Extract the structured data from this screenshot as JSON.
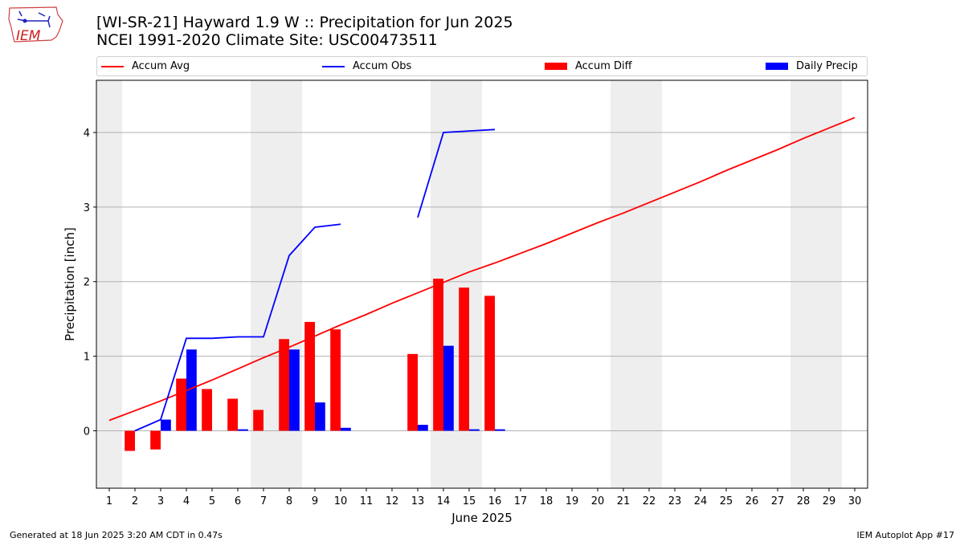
{
  "title_line1": "[WI-SR-21] Hayward 1.9 W :: Precipitation for Jun 2025",
  "title_line2": "NCEI 1991-2020 Climate Site: USC00473511",
  "logo_text": "IEM",
  "footer_left": "Generated at 18 Jun 2025 3:20 AM CDT in 0.47s",
  "footer_right": "IEM Autoplot App #17",
  "legend": [
    {
      "label": "Accum Avg",
      "kind": "line",
      "color": "#ff0000"
    },
    {
      "label": "Accum Obs",
      "kind": "line",
      "color": "#0000ff"
    },
    {
      "label": "Accum Diff",
      "kind": "bar",
      "color": "#ff0000"
    },
    {
      "label": "Daily Precip",
      "kind": "bar",
      "color": "#0000ff"
    }
  ],
  "chart_data": {
    "type": "bar",
    "xlabel": "June 2025",
    "ylabel": "Precipitation [inch]",
    "xlim": [
      0.5,
      30.5
    ],
    "ylim": [
      -0.77,
      4.7
    ],
    "xticks": [
      1,
      2,
      3,
      4,
      5,
      6,
      7,
      8,
      9,
      10,
      11,
      12,
      13,
      14,
      15,
      16,
      17,
      18,
      19,
      20,
      21,
      22,
      23,
      24,
      25,
      26,
      27,
      28,
      29,
      30
    ],
    "yticks": [
      0,
      1,
      2,
      3,
      4
    ],
    "weekend_bands": [
      [
        0.5,
        1.5
      ],
      [
        6.5,
        8.5
      ],
      [
        13.5,
        15.5
      ],
      [
        20.5,
        22.5
      ],
      [
        27.5,
        29.5
      ]
    ],
    "grid": "horizontal",
    "legend_position": "top",
    "series": [
      {
        "name": "Accum Avg",
        "kind": "line",
        "color": "#ff0000",
        "x": [
          1,
          2,
          3,
          4,
          5,
          6,
          7,
          8,
          9,
          10,
          11,
          12,
          13,
          14,
          15,
          16,
          17,
          18,
          19,
          20,
          21,
          22,
          23,
          24,
          25,
          26,
          27,
          28,
          29,
          30
        ],
        "values": [
          0.14,
          0.27,
          0.4,
          0.54,
          0.68,
          0.83,
          0.98,
          1.12,
          1.27,
          1.42,
          1.56,
          1.71,
          1.85,
          1.99,
          2.13,
          2.25,
          2.38,
          2.51,
          2.65,
          2.79,
          2.92,
          3.06,
          3.2,
          3.34,
          3.49,
          3.63,
          3.77,
          3.92,
          4.06,
          4.2
        ]
      },
      {
        "name": "Accum Obs",
        "kind": "line",
        "color": "#0000ff",
        "segments": [
          {
            "x": [
              2,
              3,
              4,
              5,
              6,
              7,
              8,
              9,
              10
            ],
            "values": [
              0.0,
              0.15,
              1.24,
              1.24,
              1.26,
              1.26,
              2.35,
              2.73,
              2.77
            ]
          },
          {
            "x": [
              13,
              14,
              15,
              16
            ],
            "values": [
              2.86,
              4.0,
              4.02,
              4.04
            ]
          }
        ]
      },
      {
        "name": "Accum Diff",
        "kind": "bar",
        "color": "#ff0000",
        "x": [
          2,
          3,
          4,
          5,
          6,
          7,
          8,
          9,
          10,
          13,
          14,
          15,
          16
        ],
        "values": [
          -0.27,
          -0.25,
          0.7,
          0.56,
          0.43,
          0.28,
          1.23,
          1.46,
          1.36,
          1.03,
          2.04,
          1.92,
          1.81
        ]
      },
      {
        "name": "Daily Precip",
        "kind": "bar",
        "color": "#0000ff",
        "x": [
          3,
          4,
          6,
          8,
          9,
          10,
          13,
          14,
          15,
          16
        ],
        "values": [
          0.15,
          1.09,
          0.02,
          1.09,
          0.38,
          0.04,
          0.08,
          1.14,
          0.02,
          0.02
        ]
      }
    ]
  }
}
